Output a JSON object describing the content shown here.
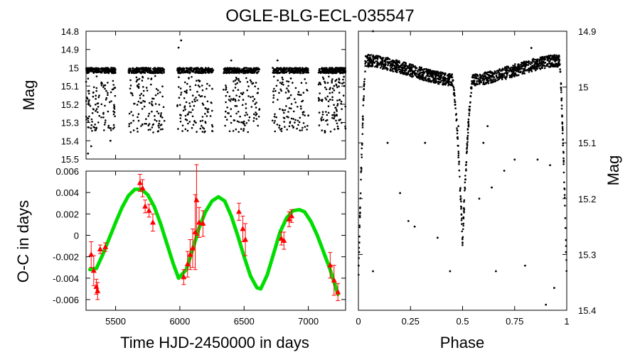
{
  "chart_data": [
    {
      "type": "scatter",
      "title": "OGLE-BLG-ECL-035547",
      "panel": "light-curve",
      "xlabel": "",
      "ylabel": "Mag",
      "xlim": [
        5270,
        7290
      ],
      "ylim": [
        15.5,
        14.8
      ],
      "y_inverted": true,
      "yticks": [
        "14.8",
        "14.9",
        "15",
        "15.1",
        "15.2",
        "15.3",
        "15.4",
        "15.5"
      ],
      "seasons": [
        {
          "start": 5270,
          "end": 5500
        },
        {
          "start": 5600,
          "end": 5880
        },
        {
          "start": 5980,
          "end": 6260
        },
        {
          "start": 6340,
          "end": 6620
        },
        {
          "start": 6720,
          "end": 7000
        },
        {
          "start": 7080,
          "end": 7290
        }
      ],
      "baseline_mag": 15.015,
      "eclipse_depth_primary": 0.33,
      "outliers": [
        {
          "x": 5285,
          "y": 15.47
        },
        {
          "x": 5310,
          "y": 15.43
        },
        {
          "x": 5460,
          "y": 15.4
        },
        {
          "x": 5990,
          "y": 14.89
        },
        {
          "x": 6010,
          "y": 14.85
        },
        {
          "x": 6400,
          "y": 14.96
        },
        {
          "x": 6760,
          "y": 14.96
        }
      ]
    },
    {
      "type": "line",
      "panel": "o-c",
      "xlabel": "Time HJD-2450000 in days",
      "ylabel": "O-C in days",
      "xlim": [
        5270,
        7290
      ],
      "ylim": [
        -0.007,
        0.006
      ],
      "xticks": [
        "5500",
        "6000",
        "6500",
        "7000"
      ],
      "yticks": [
        "0.006",
        "0.004",
        "0.002",
        "0",
        "-0.002",
        "-0.004",
        "-0.006"
      ],
      "model_curve": {
        "name": "fit",
        "color": "#00dd00",
        "x": [
          5300,
          5350,
          5400,
          5450,
          5500,
          5550,
          5600,
          5650,
          5700,
          5750,
          5800,
          5850,
          5900,
          5950,
          5990,
          6050,
          6100,
          6150,
          6200,
          6250,
          6300,
          6350,
          6400,
          6450,
          6500,
          6550,
          6600,
          6630,
          6680,
          6730,
          6780,
          6830,
          6880,
          6930,
          6970,
          7020,
          7070,
          7120,
          7170,
          7230
        ],
        "y": [
          -0.0032,
          -0.0031,
          -0.0018,
          -0.0003,
          0.0012,
          0.0026,
          0.0037,
          0.0043,
          0.0043,
          0.0038,
          0.0027,
          0.0011,
          -0.0008,
          -0.0027,
          -0.004,
          -0.0032,
          -0.0013,
          0.0007,
          0.0022,
          0.0032,
          0.0036,
          0.0032,
          0.0018,
          0.0,
          -0.002,
          -0.0038,
          -0.0049,
          -0.005,
          -0.0037,
          -0.0017,
          0.0003,
          0.0016,
          0.0023,
          0.0024,
          0.0022,
          0.0013,
          0.0,
          -0.0016,
          -0.0032,
          -0.0055
        ]
      },
      "observations": {
        "name": "O-C measurements",
        "color": "#ff0000",
        "points": [
          {
            "x": 5310,
            "y": -0.0018,
            "err": 0.0012
          },
          {
            "x": 5330,
            "y": -0.0033,
            "err": 0.0014
          },
          {
            "x": 5350,
            "y": -0.0048,
            "err": 0.0007
          },
          {
            "x": 5360,
            "y": -0.0052,
            "err": 0.0008
          },
          {
            "x": 5380,
            "y": -0.0013,
            "err": 0.0004
          },
          {
            "x": 5420,
            "y": -0.0011,
            "err": 0.0004
          },
          {
            "x": 5690,
            "y": 0.0049,
            "err": 0.0008
          },
          {
            "x": 5710,
            "y": 0.0044,
            "err": 0.0008
          },
          {
            "x": 5730,
            "y": 0.0027,
            "err": 0.0006
          },
          {
            "x": 5760,
            "y": 0.0023,
            "err": 0.0006
          },
          {
            "x": 5790,
            "y": 0.0012,
            "err": 0.0008
          },
          {
            "x": 6030,
            "y": -0.0039,
            "err": 0.0007
          },
          {
            "x": 6060,
            "y": -0.0027,
            "err": 0.0012
          },
          {
            "x": 6080,
            "y": -0.0018,
            "err": 0.0014
          },
          {
            "x": 6100,
            "y": -0.0012,
            "err": 0.0018
          },
          {
            "x": 6120,
            "y": 0.0003,
            "err": 0.0035
          },
          {
            "x": 6130,
            "y": 0.0033,
            "err": 0.0033
          },
          {
            "x": 6150,
            "y": 0.0012,
            "err": 0.0014
          },
          {
            "x": 6180,
            "y": 0.0011,
            "err": 0.0012
          },
          {
            "x": 6460,
            "y": 0.0022,
            "err": 0.0008
          },
          {
            "x": 6490,
            "y": 0.0006,
            "err": 0.0012
          },
          {
            "x": 6510,
            "y": -0.0004,
            "err": 0.0015
          },
          {
            "x": 6790,
            "y": -0.0003,
            "err": 0.0006
          },
          {
            "x": 6810,
            "y": -0.0005,
            "err": 0.0008
          },
          {
            "x": 6850,
            "y": 0.0015,
            "err": 0.0007
          },
          {
            "x": 6870,
            "y": 0.0018,
            "err": 0.0006
          },
          {
            "x": 7170,
            "y": -0.0028,
            "err": 0.0012
          },
          {
            "x": 7200,
            "y": -0.0042,
            "err": 0.0014
          },
          {
            "x": 7230,
            "y": -0.0053,
            "err": 0.0008
          }
        ]
      }
    },
    {
      "type": "scatter",
      "panel": "phased",
      "xlabel": "Phase",
      "ylabel": "Mag",
      "xlim": [
        0,
        1
      ],
      "ylim": [
        15.4,
        14.9
      ],
      "y_inverted": true,
      "xticks": [
        "0",
        "0.25",
        "0.5",
        "0.75",
        "1"
      ],
      "yticks": [
        "14.9",
        "15",
        "15.1",
        "15.2",
        "15.3",
        "15.4"
      ],
      "baseline_mag": 14.97,
      "primary_eclipse": {
        "phase": 0.5,
        "min_mag": 15.26,
        "halfwidth": 0.05
      },
      "edge_eclipse": {
        "min_mag": 15.36,
        "halfwidth": 0.035
      },
      "outliers": [
        {
          "x": 0.07,
          "y": 14.9
        },
        {
          "x": 0.07,
          "y": 15.33
        },
        {
          "x": 0.14,
          "y": 15.1
        },
        {
          "x": 0.2,
          "y": 15.19
        },
        {
          "x": 0.24,
          "y": 15.24
        },
        {
          "x": 0.27,
          "y": 15.25
        },
        {
          "x": 0.32,
          "y": 15.1
        },
        {
          "x": 0.38,
          "y": 15.27
        },
        {
          "x": 0.44,
          "y": 15.33
        },
        {
          "x": 0.48,
          "y": 15.07
        },
        {
          "x": 0.58,
          "y": 15.2
        },
        {
          "x": 0.6,
          "y": 15.1
        },
        {
          "x": 0.62,
          "y": 15.07
        },
        {
          "x": 0.64,
          "y": 15.18
        },
        {
          "x": 0.66,
          "y": 15.33
        },
        {
          "x": 0.7,
          "y": 15.15
        },
        {
          "x": 0.75,
          "y": 15.13
        },
        {
          "x": 0.78,
          "y": 14.96
        },
        {
          "x": 0.8,
          "y": 15.32
        },
        {
          "x": 0.83,
          "y": 14.93
        },
        {
          "x": 0.86,
          "y": 15.13
        },
        {
          "x": 0.9,
          "y": 15.39
        },
        {
          "x": 0.92,
          "y": 15.14
        },
        {
          "x": 0.94,
          "y": 15.36
        }
      ]
    }
  ]
}
